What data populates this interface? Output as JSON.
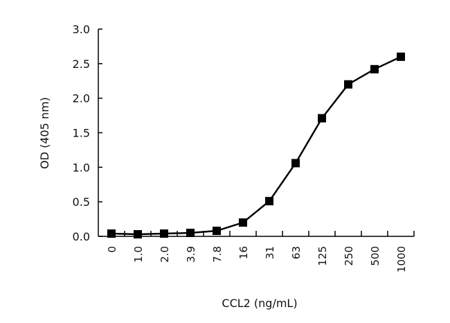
{
  "chart_data": {
    "type": "line",
    "title": "",
    "xlabel": "CCL2 (ng/mL)",
    "ylabel": "OD (405 nm)",
    "categories": [
      "0",
      "1.0",
      "2.0",
      "3.9",
      "7.8",
      "16",
      "31",
      "63",
      "125",
      "250",
      "500",
      "1000"
    ],
    "series": [
      {
        "values": [
          0.04,
          0.03,
          0.04,
          0.05,
          0.08,
          0.2,
          0.51,
          1.06,
          1.71,
          2.2,
          2.42,
          2.6
        ]
      }
    ],
    "ylim": [
      0,
      3.0
    ],
    "yticks": [
      "0.0",
      "0.5",
      "1.0",
      "1.5",
      "2.0",
      "2.5",
      "3.0"
    ],
    "grid": false,
    "marker": "square",
    "color": "#000000"
  }
}
